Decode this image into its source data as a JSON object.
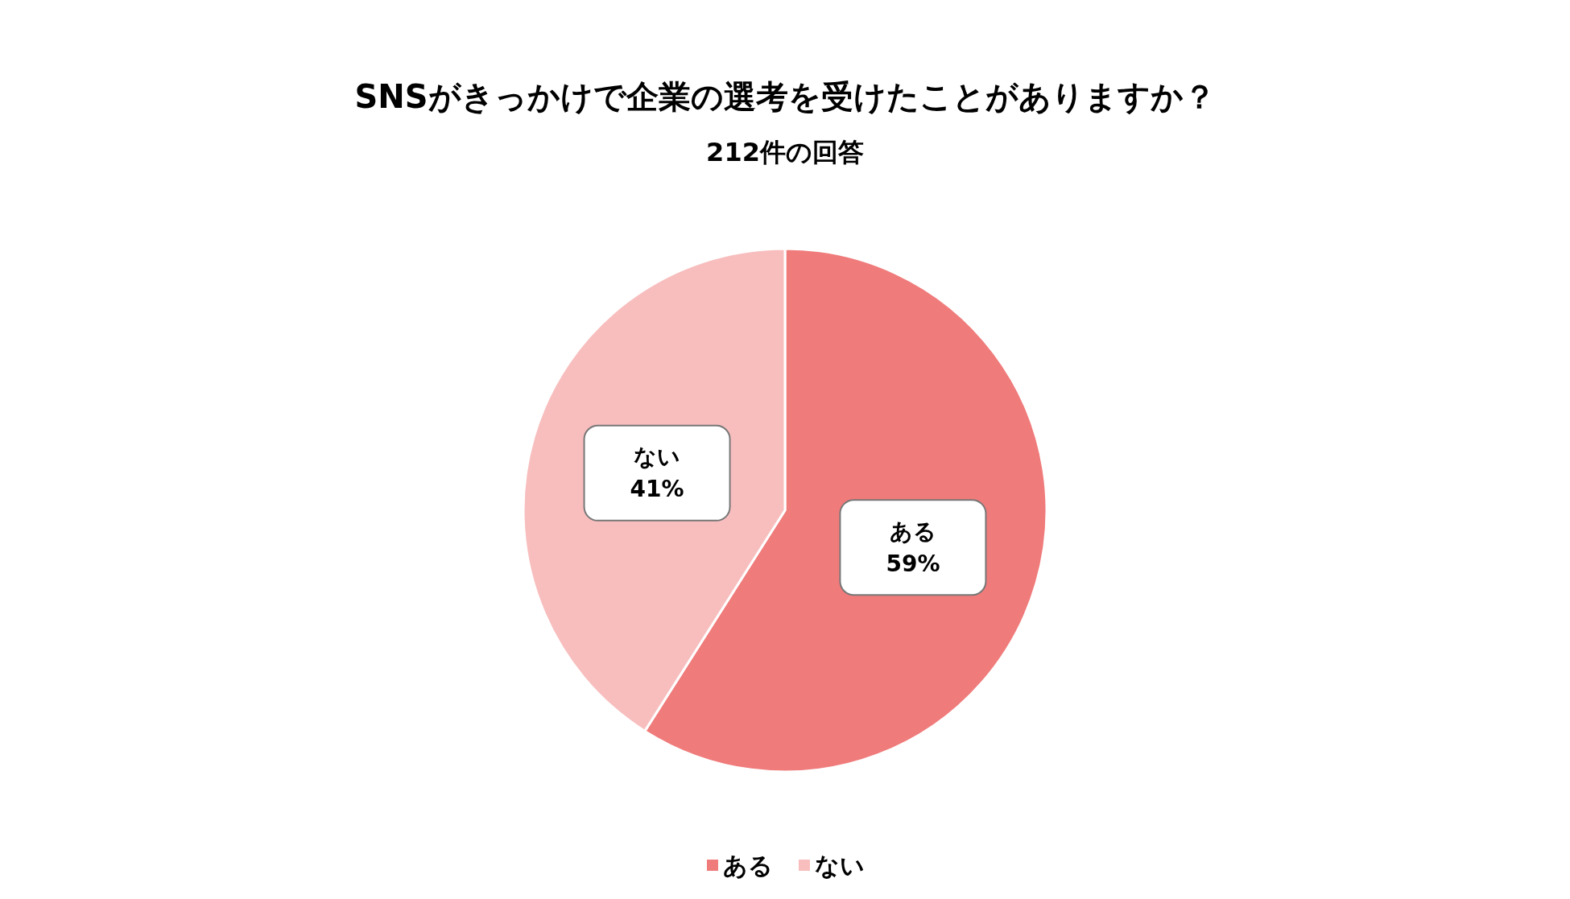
{
  "chart_data": {
    "type": "pie",
    "title": "SNSがきっかけで企業の選考を受けたことがありますか？",
    "subtitle": "212件の回答",
    "categories": [
      "ある",
      "ない"
    ],
    "values": [
      59,
      41
    ],
    "colors": [
      "#f07b7b",
      "#f8bebe"
    ],
    "value_labels": [
      "59%",
      "41%"
    ],
    "legend": "bottom"
  }
}
